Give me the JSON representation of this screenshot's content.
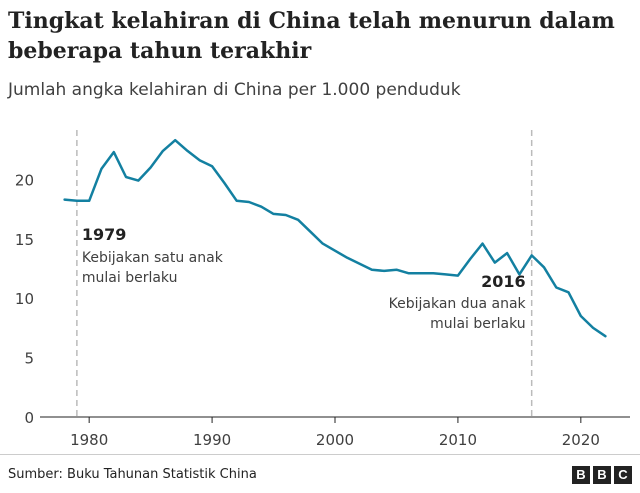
{
  "chart_data": {
    "type": "line",
    "title": "Tingkat kelahiran di China telah menurun dalam beberapa tahun terakhir",
    "subtitle": "Jumlah angka kelahiran di China per 1.000 penduduk",
    "xlabel": "",
    "ylabel": "",
    "xlim": [
      1976,
      2024
    ],
    "ylim": [
      0,
      25
    ],
    "x_ticks": [
      1980,
      1990,
      2000,
      2010,
      2020
    ],
    "y_ticks": [
      0,
      5,
      10,
      15,
      20
    ],
    "grid": false,
    "line_color": "#1380A1",
    "series": [
      {
        "x": [
          1978,
          1979,
          1980,
          1981,
          1982,
          1983,
          1984,
          1985,
          1986,
          1987,
          1988,
          1989,
          1990,
          1991,
          1992,
          1993,
          1994,
          1995,
          1996,
          1997,
          1998,
          1999,
          2000,
          2001,
          2002,
          2003,
          2004,
          2005,
          2006,
          2007,
          2008,
          2009,
          2010,
          2011,
          2012,
          2013,
          2014,
          2015,
          2016,
          2017,
          2018,
          2019,
          2020,
          2021,
          2022
        ],
        "values": [
          18.3,
          18.2,
          18.2,
          20.9,
          22.3,
          20.2,
          19.9,
          21.0,
          22.4,
          23.3,
          22.4,
          21.6,
          21.1,
          19.7,
          18.2,
          18.1,
          17.7,
          17.1,
          17.0,
          16.6,
          15.6,
          14.6,
          14.0,
          13.4,
          12.9,
          12.4,
          12.3,
          12.4,
          12.1,
          12.1,
          12.1,
          12.0,
          11.9,
          13.3,
          14.6,
          13.0,
          13.8,
          12.0,
          13.6,
          12.6,
          10.9,
          10.5,
          8.5,
          7.5,
          6.8
        ]
      }
    ],
    "annotations": [
      {
        "x": 1979,
        "year": "1979",
        "text_lines": [
          "Kebijakan satu anak",
          "mulai berlaku"
        ]
      },
      {
        "x": 2016,
        "year": "2016",
        "text_lines": [
          "Kebijakan dua anak",
          "mulai berlaku"
        ]
      }
    ]
  },
  "footer": {
    "source": "Sumber: Buku Tahunan Statistik China",
    "logo_letters": [
      "B",
      "B",
      "C"
    ]
  }
}
